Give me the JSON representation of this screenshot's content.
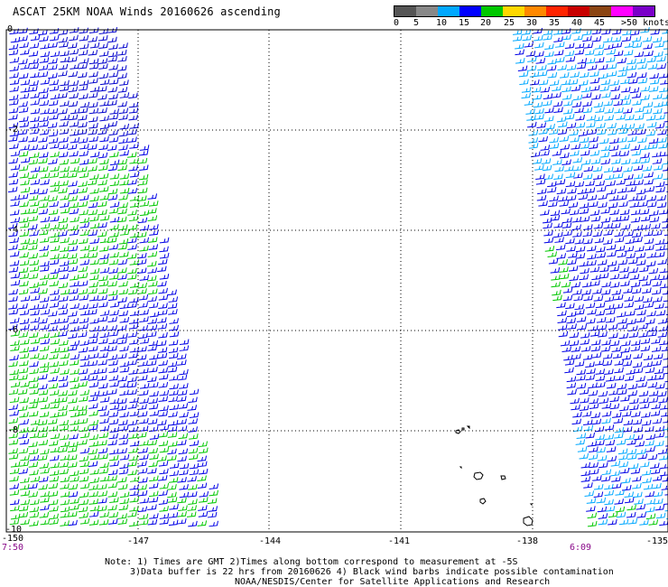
{
  "title": "ASCAT 25KM NOAA Winds 20160626 ascending",
  "colorbar": {
    "colors": [
      "#555555",
      "#888888",
      "#00a8ff",
      "#0000ff",
      "#00c800",
      "#ffd800",
      "#ff8800",
      "#ff2400",
      "#c80000",
      "#8b4513",
      "#ff00ff",
      "#7a00c8"
    ],
    "labels": [
      "0",
      "5",
      "10",
      "15",
      "20",
      "25",
      "30",
      "35",
      "40",
      "45",
      ">50 knots"
    ]
  },
  "lat_labels": [
    "0",
    "-2",
    "-4",
    "-6",
    "-8",
    "-10"
  ],
  "lon_labels": [
    "-150",
    "-147",
    "-144",
    "-141",
    "-138",
    "-135"
  ],
  "times": {
    "left": "7:50",
    "right": "6:09"
  },
  "notes": [
    "Note: 1) Times are GMT 2)Times along bottom correspond to measurement at -5S",
    "3)Data buffer is 22 hrs from 20160626 4) Black wind barbs indicate possible contamination",
    "NOAA/NESDIS/Center for Satellite Applications and Research"
  ]
}
